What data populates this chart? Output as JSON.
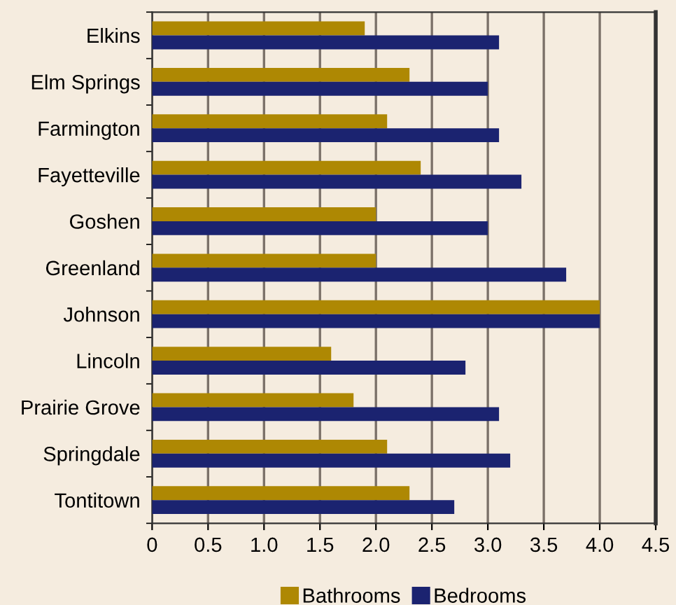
{
  "chart_data": {
    "type": "bar",
    "orientation": "horizontal",
    "categories": [
      "Elkins",
      "Elm Springs",
      "Farmington",
      "Fayetteville",
      "Goshen",
      "Greenland",
      "Johnson",
      "Lincoln",
      "Prairie Grove",
      "Springdale",
      "Tontitown"
    ],
    "series": [
      {
        "name": "Bathrooms",
        "color": "#ae8803",
        "values": [
          1.9,
          2.3,
          2.1,
          2.4,
          2.0,
          2.0,
          4.0,
          1.6,
          1.8,
          2.1,
          2.3
        ]
      },
      {
        "name": "Bedrooms",
        "color": "#1b2370",
        "values": [
          3.1,
          3.0,
          3.1,
          3.3,
          3.0,
          3.7,
          4.0,
          2.8,
          3.1,
          3.2,
          2.7
        ]
      }
    ],
    "xlim": [
      0,
      4.5
    ],
    "xticks": [
      0,
      0.5,
      {
        "value": 1,
        "label": "1.0"
      },
      1.5,
      {
        "value": 2,
        "label": "2.0"
      },
      2.5,
      {
        "value": 3,
        "label": "3.0"
      },
      3.5,
      {
        "value": 4,
        "label": "4.0"
      },
      4.5
    ],
    "grid": "x",
    "legend": "bottom"
  }
}
